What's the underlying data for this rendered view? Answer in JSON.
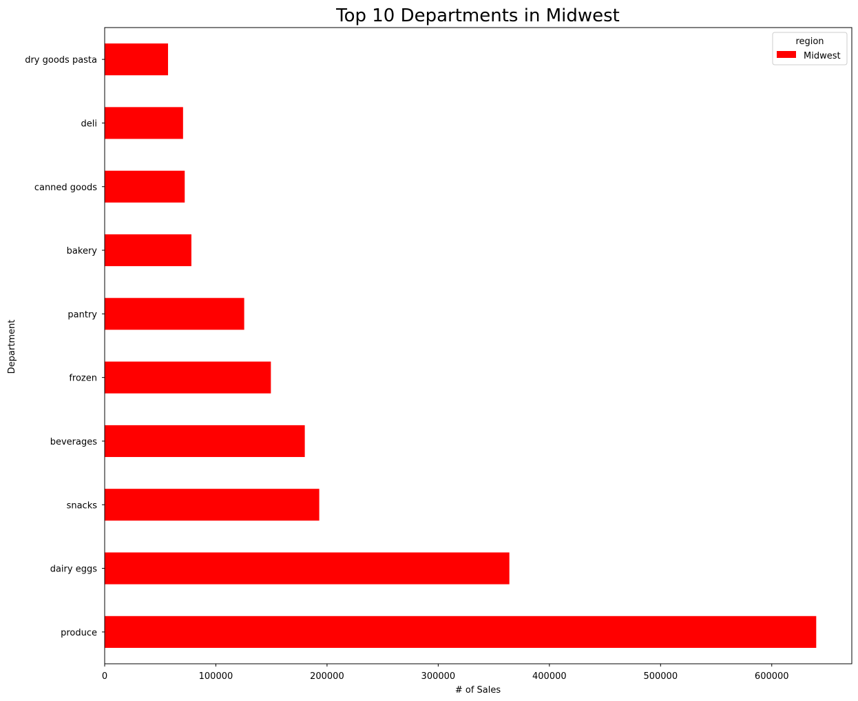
{
  "chart_data": {
    "type": "bar",
    "orientation": "horizontal",
    "title": "Top 10 Departments in Midwest",
    "xlabel": "# of Sales",
    "ylabel": "Department",
    "categories": [
      "produce",
      "dairy eggs",
      "snacks",
      "beverages",
      "frozen",
      "pantry",
      "bakery",
      "canned goods",
      "deli",
      "dry goods pasta"
    ],
    "series": [
      {
        "name": "Midwest",
        "color": "#ff0000",
        "values": [
          640000,
          364000,
          193000,
          180000,
          149500,
          125500,
          78000,
          72000,
          70500,
          57000
        ]
      }
    ],
    "xlim": [
      0,
      672000
    ],
    "xticks": [
      0,
      100000,
      200000,
      300000,
      400000,
      500000,
      600000
    ],
    "xtick_labels": [
      "0",
      "100000",
      "200000",
      "300000",
      "400000",
      "500000",
      "600000"
    ],
    "grid": false,
    "legend": {
      "title": "region",
      "placement": "top-right"
    }
  }
}
